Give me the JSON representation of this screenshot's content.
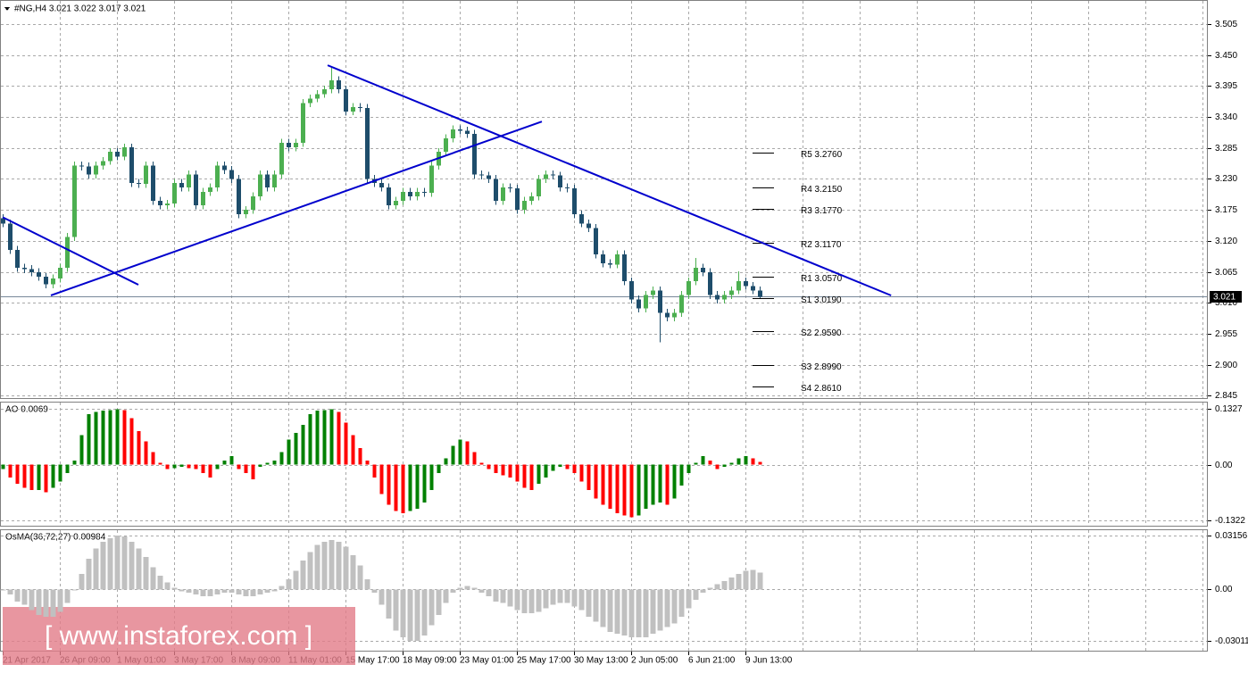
{
  "chart_data": [
    {
      "type": "candlestick",
      "title": "#NG,H4  3.021 3.022 3.017 3.021",
      "categories": [
        "21 Apr 2017",
        null,
        null,
        null,
        null,
        null,
        null,
        null,
        "26 Apr 09:00",
        null,
        null,
        null,
        null,
        null,
        null,
        null,
        "1 May 01:00",
        null,
        null,
        null,
        null,
        null,
        null,
        null,
        "3 May 17:00",
        null,
        null,
        null,
        null,
        null,
        null,
        null,
        "8 May 09:00",
        null,
        null,
        null,
        null,
        null,
        null,
        null,
        "11 May 01:00",
        null,
        null,
        null,
        null,
        null,
        null,
        null,
        "15 May 17:00",
        null,
        null,
        null,
        null,
        null,
        null,
        null,
        "18 May 09:00",
        null,
        null,
        null,
        null,
        null,
        null,
        null,
        "23 May 01:00",
        null,
        null,
        null,
        null,
        null,
        null,
        null,
        "25 May 17:00",
        null,
        null,
        null,
        null,
        null,
        null,
        null,
        "30 May 13:00",
        null,
        null,
        null,
        null,
        null,
        null,
        null,
        "2 Jun 05:00",
        null,
        null,
        null,
        null,
        null,
        null,
        null,
        "6 Jun 21:00",
        null,
        null,
        null,
        null,
        null,
        null,
        null,
        "9 Jun 13:00",
        null,
        null
      ],
      "open": [
        3.16,
        3.151,
        3.104,
        3.072,
        3.07,
        3.064,
        3.056,
        3.043,
        3.053,
        3.072,
        3.127,
        3.254,
        3.252,
        3.238,
        3.254,
        3.262,
        3.278,
        3.27,
        3.286,
        3.223,
        3.221,
        3.254,
        3.191,
        3.183,
        3.186,
        3.223,
        3.215,
        3.238,
        3.183,
        3.207,
        3.215,
        3.254,
        3.246,
        3.23,
        3.167,
        3.175,
        3.199,
        3.238,
        3.215,
        3.238,
        3.294,
        3.286,
        3.294,
        3.365,
        3.373,
        3.381,
        3.389,
        3.405,
        3.389,
        3.35,
        3.358,
        3.356,
        3.23,
        3.223,
        3.215,
        3.183,
        3.191,
        3.207,
        3.199,
        3.207,
        3.205,
        3.254,
        3.278,
        3.302,
        3.318,
        3.316,
        3.31,
        3.238,
        3.236,
        3.23,
        3.191,
        3.215,
        3.213,
        3.175,
        3.191,
        3.199,
        3.23,
        3.238,
        3.236,
        3.215,
        3.213,
        3.167,
        3.151,
        3.143,
        3.096,
        3.08,
        3.078,
        3.096,
        3.048,
        3.016,
        3.0,
        3.024,
        3.032,
        2.992,
        2.984,
        2.992,
        3.024,
        3.048,
        3.072,
        3.064,
        3.024,
        3.016,
        3.024,
        3.032,
        3.048,
        3.04,
        3.032
      ],
      "high": [
        3.167,
        3.158,
        3.111,
        3.079,
        3.077,
        3.071,
        3.063,
        3.06,
        3.079,
        3.134,
        3.261,
        3.261,
        3.259,
        3.261,
        3.269,
        3.285,
        3.285,
        3.293,
        3.293,
        3.23,
        3.261,
        3.261,
        3.198,
        3.193,
        3.23,
        3.23,
        3.245,
        3.245,
        3.214,
        3.222,
        3.261,
        3.261,
        3.253,
        3.237,
        3.182,
        3.206,
        3.245,
        3.245,
        3.245,
        3.301,
        3.301,
        3.301,
        3.372,
        3.38,
        3.388,
        3.396,
        3.43,
        3.412,
        3.396,
        3.365,
        3.365,
        3.363,
        3.237,
        3.23,
        3.222,
        3.198,
        3.214,
        3.214,
        3.214,
        3.214,
        3.261,
        3.285,
        3.309,
        3.325,
        3.325,
        3.323,
        3.317,
        3.245,
        3.243,
        3.237,
        3.222,
        3.222,
        3.22,
        3.198,
        3.206,
        3.237,
        3.245,
        3.245,
        3.243,
        3.222,
        3.22,
        3.174,
        3.158,
        3.15,
        3.103,
        3.087,
        3.103,
        3.103,
        3.055,
        3.023,
        3.031,
        3.039,
        3.039,
        2.999,
        2.999,
        3.031,
        3.055,
        3.09,
        3.079,
        3.071,
        3.031,
        3.031,
        3.039,
        3.066,
        3.055,
        3.047,
        3.039
      ],
      "low": [
        3.144,
        3.097,
        3.065,
        3.063,
        3.057,
        3.049,
        3.036,
        3.036,
        3.046,
        3.065,
        3.12,
        3.245,
        3.231,
        3.231,
        3.247,
        3.255,
        3.263,
        3.263,
        3.216,
        3.214,
        3.214,
        3.184,
        3.176,
        3.176,
        3.179,
        3.208,
        3.208,
        3.176,
        3.176,
        3.2,
        3.208,
        3.239,
        3.223,
        3.16,
        3.16,
        3.168,
        3.192,
        3.208,
        3.208,
        3.231,
        3.279,
        3.279,
        3.287,
        3.358,
        3.366,
        3.374,
        3.382,
        3.382,
        3.343,
        3.343,
        3.349,
        3.223,
        3.216,
        3.208,
        3.176,
        3.176,
        3.184,
        3.192,
        3.192,
        3.198,
        3.198,
        3.247,
        3.271,
        3.295,
        3.309,
        3.303,
        3.231,
        3.229,
        3.223,
        3.184,
        3.184,
        3.206,
        3.168,
        3.168,
        3.184,
        3.192,
        3.223,
        3.229,
        3.208,
        3.206,
        3.16,
        3.144,
        3.136,
        3.089,
        3.073,
        3.071,
        3.071,
        3.041,
        3.009,
        2.993,
        2.993,
        3.017,
        2.94,
        2.977,
        2.977,
        2.985,
        3.017,
        3.041,
        3.057,
        3.017,
        3.009,
        3.009,
        3.017,
        3.025,
        3.033,
        3.025,
        3.017
      ],
      "close": [
        3.151,
        3.104,
        3.072,
        3.07,
        3.064,
        3.056,
        3.043,
        3.053,
        3.072,
        3.127,
        3.254,
        3.252,
        3.238,
        3.254,
        3.262,
        3.278,
        3.27,
        3.286,
        3.223,
        3.221,
        3.254,
        3.191,
        3.183,
        3.186,
        3.223,
        3.215,
        3.238,
        3.183,
        3.207,
        3.215,
        3.254,
        3.246,
        3.23,
        3.167,
        3.175,
        3.199,
        3.238,
        3.215,
        3.238,
        3.294,
        3.286,
        3.294,
        3.365,
        3.373,
        3.381,
        3.389,
        3.405,
        3.389,
        3.35,
        3.358,
        3.356,
        3.23,
        3.223,
        3.215,
        3.183,
        3.191,
        3.207,
        3.199,
        3.207,
        3.205,
        3.254,
        3.278,
        3.302,
        3.318,
        3.316,
        3.31,
        3.238,
        3.236,
        3.23,
        3.191,
        3.215,
        3.213,
        3.175,
        3.191,
        3.199,
        3.23,
        3.238,
        3.236,
        3.215,
        3.213,
        3.167,
        3.151,
        3.143,
        3.096,
        3.08,
        3.078,
        3.096,
        3.048,
        3.016,
        3.0,
        3.024,
        3.032,
        2.992,
        2.984,
        2.992,
        3.024,
        3.048,
        3.072,
        3.064,
        3.024,
        3.016,
        3.024,
        3.032,
        3.048,
        3.04,
        3.032,
        3.021
      ],
      "up_color": "#4caf50",
      "down_color": "#1e4d6b",
      "last_price": 3.021,
      "last_price_color": "#778899",
      "ylim": [
        2.839,
        3.548
      ],
      "yticks": [
        {
          "value": 3.505,
          "label": "3.505"
        },
        {
          "value": 3.45,
          "label": "3.450"
        },
        {
          "value": 3.395,
          "label": "3.395"
        },
        {
          "value": 3.34,
          "label": "3.340"
        },
        {
          "value": 3.285,
          "label": "3.285"
        },
        {
          "value": 3.23,
          "label": "3.230"
        },
        {
          "value": 3.175,
          "label": "3.175"
        },
        {
          "value": 3.12,
          "label": "3.120"
        },
        {
          "value": 3.065,
          "label": "3.065"
        },
        {
          "value": 3.01,
          "label": "3.010"
        },
        {
          "value": 2.955,
          "label": "2.955"
        },
        {
          "value": 2.9,
          "label": "2.900"
        },
        {
          "value": 2.845,
          "label": "2.845"
        }
      ],
      "grid": true,
      "levels": [
        {
          "label": "R5 3.2760",
          "value": 3.276
        },
        {
          "label": "R4 3.2150",
          "value": 3.215
        },
        {
          "label": "R3 3.1770",
          "value": 3.177
        },
        {
          "label": "R2 3.1170",
          "value": 3.117
        },
        {
          "label": "R1 3.0570",
          "value": 3.057
        },
        {
          "label": "S1 3.0190",
          "value": 3.019
        },
        {
          "label": "S2 2.9590",
          "value": 2.959
        },
        {
          "label": "S3 2.8990",
          "value": 2.899
        },
        {
          "label": "S4 2.8610",
          "value": 2.861
        }
      ],
      "trendline_color": "#0000cd",
      "trendlines": [
        {
          "x": [
            0,
            19
          ],
          "y": [
            3.162,
            3.042
          ]
        },
        {
          "x": [
            6.75,
            75.5
          ],
          "y": [
            3.023,
            3.332
          ]
        },
        {
          "x": [
            45.5,
            124.4
          ],
          "y": [
            3.432,
            3.023
          ]
        }
      ],
      "watermark": "[ www.instaforex.com ]"
    },
    {
      "type": "bar",
      "title": "AO 0.0069",
      "up_color": "#008000",
      "down_color": "#ff0000",
      "values": [
        -0.01,
        -0.03,
        -0.045,
        -0.055,
        -0.06,
        -0.06,
        -0.065,
        -0.055,
        -0.04,
        -0.02,
        0.01,
        0.07,
        0.12,
        0.125,
        0.128,
        0.13,
        0.132,
        0.13,
        0.11,
        0.08,
        0.055,
        0.03,
        0.005,
        -0.01,
        -0.008,
        -0.005,
        -0.008,
        -0.01,
        -0.02,
        -0.03,
        -0.01,
        0.01,
        0.02,
        -0.01,
        -0.02,
        -0.035,
        -0.005,
        0.005,
        0.01,
        0.03,
        0.06,
        0.075,
        0.095,
        0.12,
        0.128,
        0.13,
        0.132,
        0.125,
        0.1,
        0.07,
        0.04,
        0.01,
        -0.03,
        -0.07,
        -0.095,
        -0.11,
        -0.115,
        -0.11,
        -0.105,
        -0.09,
        -0.06,
        -0.02,
        0.015,
        0.045,
        0.06,
        0.055,
        0.03,
        0.005,
        -0.01,
        -0.02,
        -0.025,
        -0.03,
        -0.04,
        -0.055,
        -0.06,
        -0.045,
        -0.03,
        -0.015,
        -0.005,
        -0.01,
        -0.02,
        -0.04,
        -0.06,
        -0.08,
        -0.095,
        -0.105,
        -0.115,
        -0.12,
        -0.125,
        -0.12,
        -0.105,
        -0.095,
        -0.09,
        -0.095,
        -0.08,
        -0.05,
        -0.02,
        0.005,
        0.02,
        0.01,
        -0.01,
        -0.005,
        0.005,
        0.015,
        0.02,
        0.015,
        0.0069
      ],
      "ylim": [
        -0.147,
        0.1497
      ],
      "yticks": [
        {
          "value": 0.1327,
          "label": "0.1327"
        },
        {
          "value": 0,
          "label": "0.00"
        },
        {
          "value": -0.1322,
          "label": "-0.1322"
        }
      ]
    },
    {
      "type": "bar",
      "title": "OsMA(36,72,27) 0.00984",
      "color": "#c0c0c0",
      "values": [
        0.0,
        -0.003,
        -0.007,
        -0.009,
        -0.012,
        -0.015,
        -0.016,
        -0.016,
        -0.013,
        -0.008,
        0.0,
        0.009,
        0.018,
        0.024,
        0.028,
        0.03,
        0.0315,
        0.031,
        0.028,
        0.024,
        0.019,
        0.013,
        0.008,
        0.004,
        0.001,
        -0.001,
        -0.002,
        -0.003,
        -0.004,
        -0.004,
        -0.003,
        -0.002,
        -0.002,
        -0.003,
        -0.004,
        -0.004,
        -0.003,
        -0.002,
        -0.001,
        0.002,
        0.006,
        0.011,
        0.017,
        0.022,
        0.026,
        0.028,
        0.029,
        0.028,
        0.025,
        0.02,
        0.014,
        0.006,
        -0.002,
        -0.009,
        -0.017,
        -0.024,
        -0.028,
        -0.03,
        -0.03,
        -0.027,
        -0.021,
        -0.015,
        -0.008,
        -0.002,
        0.001,
        0.002,
        0.001,
        -0.002,
        -0.004,
        -0.007,
        -0.008,
        -0.01,
        -0.012,
        -0.014,
        -0.014,
        -0.013,
        -0.011,
        -0.009,
        -0.008,
        -0.008,
        -0.01,
        -0.012,
        -0.016,
        -0.019,
        -0.022,
        -0.025,
        -0.026,
        -0.027,
        -0.028,
        -0.028,
        -0.028,
        -0.026,
        -0.024,
        -0.022,
        -0.02,
        -0.016,
        -0.011,
        -0.006,
        -0.002,
        0.001,
        0.003,
        0.005,
        0.007,
        0.009,
        0.011,
        0.0115,
        0.00984
      ],
      "ylim": [
        -0.03639,
        0.03522
      ],
      "yticks": [
        {
          "value": 0.03156,
          "label": "0.03156"
        },
        {
          "value": 0,
          "label": "0.00"
        },
        {
          "value": -0.03011,
          "label": "-0.03011"
        }
      ]
    }
  ]
}
